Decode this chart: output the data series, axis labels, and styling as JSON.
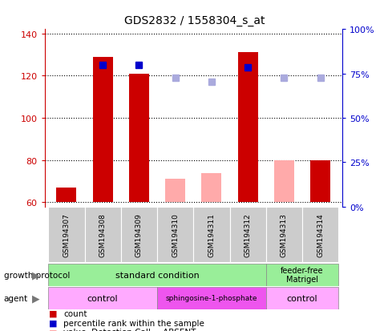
{
  "title": "GDS2832 / 1558304_s_at",
  "samples": [
    "GSM194307",
    "GSM194308",
    "GSM194309",
    "GSM194310",
    "GSM194311",
    "GSM194312",
    "GSM194313",
    "GSM194314"
  ],
  "bar_bottom": 60,
  "ylim_left": [
    58,
    142
  ],
  "ylim_right": [
    0,
    100
  ],
  "yticks_left": [
    60,
    80,
    100,
    120,
    140
  ],
  "yticks_right": [
    0,
    25,
    50,
    75,
    100
  ],
  "count_values": [
    67,
    129,
    121,
    null,
    null,
    131,
    null,
    80
  ],
  "count_color": "#cc0000",
  "rank_values": [
    null,
    125,
    125,
    null,
    null,
    124,
    null,
    null
  ],
  "rank_color": "#0000cc",
  "absent_value_values": [
    null,
    null,
    null,
    71,
    74,
    null,
    80,
    null
  ],
  "absent_value_color": "#ffaaaa",
  "absent_rank_values": [
    null,
    null,
    null,
    119,
    117,
    null,
    119,
    119
  ],
  "absent_rank_color": "#aaaadd",
  "bar_width": 0.55,
  "marker_size": 6,
  "absent_marker_size": 6,
  "grid_color": "black",
  "left_tick_color": "#cc0000",
  "right_tick_color": "#0000cc",
  "sample_bg_color": "#cccccc",
  "gp_color_main": "#99ee99",
  "agent_color_light": "#ffaaff",
  "agent_color_dark": "#ee55ee",
  "arrow_color": "#777777"
}
